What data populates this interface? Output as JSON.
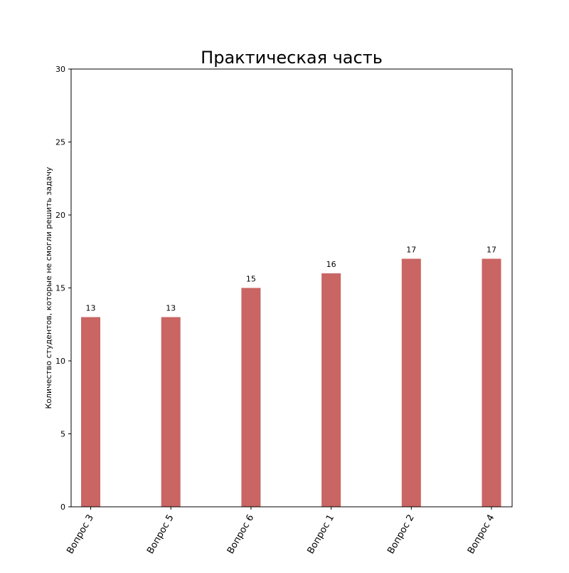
{
  "chart_data": {
    "type": "bar",
    "title": "Практическая часть",
    "xlabel": "",
    "ylabel": "Количество студентов, которые не смогли решить задачу",
    "categories": [
      "Вопрос 3",
      "Вопрос 5",
      "Вопрос 6",
      "Вопрос 1",
      "Вопрос 2",
      "Вопрос 4"
    ],
    "values": [
      13,
      13,
      15,
      16,
      17,
      17
    ],
    "ylim": [
      0,
      30
    ],
    "yticks": [
      0,
      5,
      10,
      15,
      20,
      25,
      30
    ],
    "bar_color": "#c96563",
    "grid": false,
    "legend": "none",
    "data_labels": true,
    "xtick_rotation": "60 degrees"
  }
}
